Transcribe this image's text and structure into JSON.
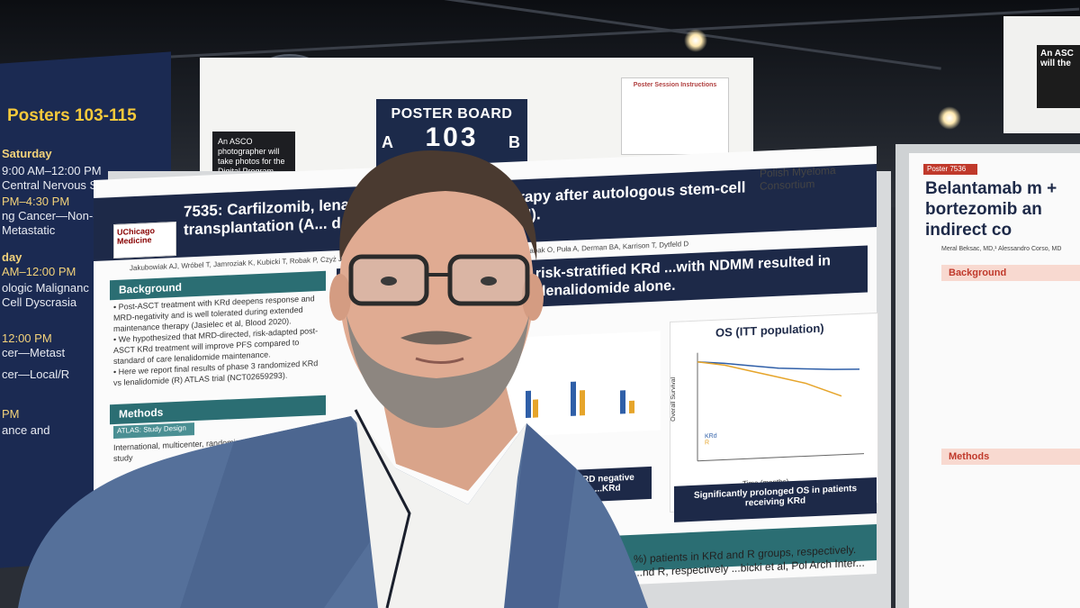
{
  "sign_left": {
    "title": "Posters 103-115",
    "day1": "Saturday",
    "lines": [
      "9:00 AM–12:00 PM",
      "Central Nervous System Tumors",
      "PM–4:30 PM",
      "ng Cancer—Non-Small",
      "Metastatic",
      "day",
      "AM–12:00 PM",
      "ologic Malignanc",
      "Cell Dyscrasia",
      "12:00 PM",
      "cer—Metast",
      "cer—Local/R",
      "PM",
      "ance and"
    ]
  },
  "header_board": {
    "photo_note": "An ASCO photographer will take photos for the Digital Program.",
    "poster_board_label": "POSTER BOARD",
    "side_a": "A",
    "board_number": "103",
    "side_b": "B",
    "instructions_title": "Poster Session Instructions"
  },
  "sign_right": {
    "text": "An ASC will the"
  },
  "poster": {
    "title": "7535: Carfilzomib, lenalidomide ... tenance therapy after autologous stem-cell transplantation (A... d multiple myeloma (NDMM).",
    "logo": "UChicago Medicine",
    "consortium": "Polish Myeloma Consortium",
    "authors": "Jakubowiak AJ, Wróbel T, Jamroziak K, Kubicki T, Robak P, Czyż J, Tyczyńska A, Druzd... ubka J, Usnarska-Zubkiewicz L, Czabak O, Puła A, Derman BA, Karrison T, Dytfeld D",
    "banner": "...trated that MRD-directed, risk-stratified KRd ...with NDMM resulted in superior PFS and ...red with lenalidomide alone.",
    "background_head": "Background",
    "background_text": [
      "• Post-ASCT treatment with KRd deepens response and MRD-negativity and is well tolerated during extended maintenance therapy (Jasielec et al, Blood 2020).",
      "• We hypothesized that MRD-directed, risk-adapted post-ASCT KRd treatment will improve PFS compared to standard of care lenalidomide maintenance.",
      "• Here we report final results of phase 3 randomized KRd vs lenalidomide (R) ATLAS trial (NCT02659293)."
    ],
    "methods_head": "Methods",
    "methods_sub": "ATLAS: Study Design",
    "methods_text": "International, multicenter, randomized, open-label, phase 3 study",
    "os_title": "OS (ITT population)",
    "os_ylabel": "Overall Survival",
    "os_xlabel": "Time (months)",
    "os_legend": [
      "KRd",
      "R"
    ],
    "mrd_callout": "...ble MRD negative status ...KRd",
    "os_callout": "Significantly prolonged OS in patients receiving KRd",
    "bottom_text": "%) patients in KRd and R groups, respectively. ...nd R, respectively ...bicki et al, Pol Arch Inter..."
  },
  "right_poster": {
    "label": "Poster 7536",
    "title": "Belantamab m + bortezomib an indirect co",
    "authors": "Meral Beksac, MD,¹ Alessandro Corso, MD",
    "background_head": "Background",
    "methods_head": "Methods"
  },
  "colors": {
    "navy": "#1d2948",
    "teal": "#2b6e73",
    "sign_yellow": "#f6c93b",
    "sign_blue": "#1b2a52"
  }
}
